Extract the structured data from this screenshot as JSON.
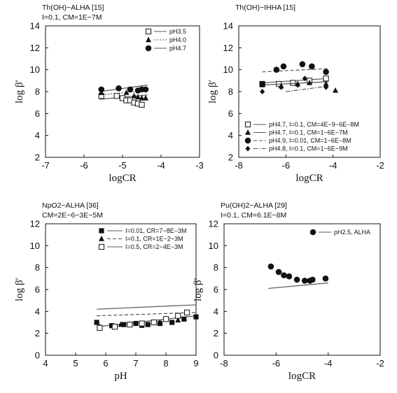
{
  "chart_data": [
    {
      "type": "scatter",
      "title": "Th(OH)−ALHA [15]",
      "subtitle": "I=0.1, CM=1E−7M",
      "xlabel": "logCR",
      "ylabel": "log β′",
      "xlim": [
        -7,
        -3
      ],
      "ylim": [
        2,
        14
      ],
      "xticks": [
        "-7",
        "-6",
        "-5",
        "-4",
        "-3"
      ],
      "yticks": [
        "2",
        "4",
        "6",
        "8",
        "10",
        "12",
        "14"
      ],
      "legend_position": "top-right",
      "series": [
        {
          "name": "pH3.5",
          "marker": "open-square",
          "line": "solid",
          "x": [
            -5.55,
            -5.15,
            -5.0,
            -4.9,
            -4.8,
            -4.7,
            -4.6,
            -4.5
          ],
          "y": [
            7.6,
            7.6,
            7.4,
            7.2,
            7.2,
            7.0,
            6.9,
            6.8
          ],
          "fit": {
            "x": [
              -5.6,
              -4.35
            ],
            "y": [
              7.3,
              7.7
            ]
          }
        },
        {
          "name": "pH4.0",
          "marker": "filled-triangle",
          "line": "dotted",
          "x": [
            -5.55,
            -4.9,
            -4.7,
            -4.6,
            -4.5,
            -4.4
          ],
          "y": [
            7.9,
            7.9,
            7.6,
            7.5,
            7.4,
            7.4
          ],
          "fit": {
            "x": [
              -5.6,
              -4.35
            ],
            "y": [
              7.7,
              8.1
            ]
          }
        },
        {
          "name": "pH4.7",
          "marker": "filled-circle",
          "line": "solid",
          "x": [
            -5.55,
            -5.1,
            -4.8,
            -4.6,
            -4.5,
            -4.4
          ],
          "y": [
            8.2,
            8.3,
            8.2,
            8.1,
            8.2,
            8.2
          ],
          "fit": {
            "x": [
              -5.6,
              -4.35
            ],
            "y": [
              8.0,
              8.6
            ]
          }
        }
      ]
    },
    {
      "type": "scatter",
      "title": "Th(OH)−IHHA [15]",
      "xlabel": "logCR",
      "ylabel": "log β′",
      "xlim": [
        -8,
        -2
      ],
      "ylim": [
        2,
        14
      ],
      "xticks": [
        "-8",
        "-6",
        "-4",
        "-2"
      ],
      "yticks": [
        "2",
        "4",
        "6",
        "8",
        "10",
        "12",
        "14"
      ],
      "legend_position": "bottom",
      "series": [
        {
          "name": "pH4.7, I=0.1, CM=4E−9−6E−8M",
          "marker": "open-square",
          "line": "solid",
          "x": [
            -7.0,
            -6.3,
            -5.7,
            -5.0,
            -4.3
          ],
          "y": [
            8.7,
            8.7,
            8.8,
            9.0,
            9.2
          ],
          "fit": {
            "x": [
              -7.0,
              -4.2
            ],
            "y": [
              8.8,
              9.2
            ]
          }
        },
        {
          "name": "pH4.7, I=0.1, CM=1−6E−7M",
          "marker": "filled-triangle",
          "line": "solid",
          "x": [
            -7.0,
            -6.2,
            -5.5,
            -5.0,
            -4.3,
            -3.9
          ],
          "y": [
            8.6,
            8.5,
            8.7,
            8.8,
            8.7,
            8.1
          ],
          "fit": {
            "x": [
              -7.0,
              -4.2
            ],
            "y": [
              8.6,
              8.9
            ]
          }
        },
        {
          "name": "pH4.9, I=0.01, CM=1−6E−8M",
          "marker": "filled-circle",
          "line": "dashed",
          "x": [
            -7.0,
            -6.4,
            -6.1,
            -5.3,
            -4.9,
            -4.3
          ],
          "y": [
            8.7,
            10.0,
            10.3,
            10.5,
            10.3,
            9.8
          ],
          "fit": {
            "x": [
              -7.0,
              -4.2
            ],
            "y": [
              9.8,
              10.1
            ]
          }
        },
        {
          "name": "pH4.8, I=0.1, CM=1−6E−9M",
          "marker": "filled-diamond",
          "line": "dashdot",
          "x": [
            -7.0,
            -6.2,
            -5.5,
            -5.2,
            -4.3
          ],
          "y": [
            8.0,
            8.4,
            8.6,
            9.2,
            8.4
          ],
          "fit": {
            "x": [
              -6.0,
              -4.2
            ],
            "y": [
              8.0,
              8.5
            ]
          }
        }
      ]
    },
    {
      "type": "scatter",
      "title": "NpO2−ALHA [36]",
      "subtitle": "CM=2E−6−3E−5M",
      "xlabel": "pH",
      "ylabel": "log β′",
      "xlim": [
        4,
        9
      ],
      "ylim": [
        0,
        12
      ],
      "xticks": [
        "4",
        "5",
        "6",
        "7",
        "8",
        "9"
      ],
      "yticks": [
        "0",
        "2",
        "4",
        "6",
        "8",
        "10",
        "12"
      ],
      "legend_position": "top-left",
      "series": [
        {
          "name": "I=0.01, CR=7−8E−3M",
          "marker": "filled-square",
          "line": "solid",
          "x": [
            5.7,
            6.2,
            6.6,
            7.0,
            7.4,
            7.8,
            8.2,
            8.6,
            9.0
          ],
          "y": [
            3.0,
            2.7,
            2.8,
            2.9,
            2.8,
            2.9,
            3.0,
            3.3,
            3.5
          ],
          "fit": {
            "x": [
              5.7,
              9.0
            ],
            "y": [
              2.6,
              3.6
            ]
          }
        },
        {
          "name": "I=0.1, CR=1E−2−3M",
          "marker": "filled-triangle",
          "line": "dashed",
          "x": [
            5.8,
            6.5,
            7.2,
            7.8,
            8.4
          ],
          "y": [
            2.6,
            2.8,
            2.7,
            3.0,
            3.2
          ],
          "fit": {
            "x": [
              5.7,
              9.0
            ],
            "y": [
              3.6,
              3.9
            ]
          }
        },
        {
          "name": "I=0.5, CR=2−4E−3M",
          "marker": "open-square",
          "line": "solid",
          "x": [
            5.8,
            6.3,
            6.8,
            7.2,
            7.6,
            8.0,
            8.4,
            8.7
          ],
          "y": [
            2.5,
            2.6,
            2.8,
            2.9,
            3.0,
            3.3,
            3.6,
            3.9
          ],
          "fit": {
            "x": [
              5.7,
              9.0
            ],
            "y": [
              4.2,
              4.6
            ]
          }
        }
      ]
    },
    {
      "type": "scatter",
      "title": "Pu(OH)2−ALHA [29]",
      "subtitle": "I=0.1, CM=6.1E−8M",
      "xlabel": "logCR",
      "ylabel": "log β′",
      "xlim": [
        -8,
        -2
      ],
      "ylim": [
        0,
        12
      ],
      "xticks": [
        "-8",
        "-6",
        "-4",
        "-2"
      ],
      "yticks": [
        "0",
        "2",
        "4",
        "6",
        "8",
        "10",
        "12"
      ],
      "legend_position": "top-right",
      "series": [
        {
          "name": "pH2.5, ALHA",
          "marker": "filled-circle",
          "line": "solid",
          "x": [
            -6.2,
            -5.9,
            -5.7,
            -5.5,
            -5.2,
            -4.9,
            -4.7,
            -4.6,
            -4.1
          ],
          "y": [
            8.1,
            7.6,
            7.3,
            7.2,
            6.9,
            6.8,
            6.8,
            6.9,
            7.0
          ],
          "fit": {
            "x": [
              -6.3,
              -4.0
            ],
            "y": [
              6.1,
              6.6
            ]
          }
        }
      ]
    }
  ]
}
